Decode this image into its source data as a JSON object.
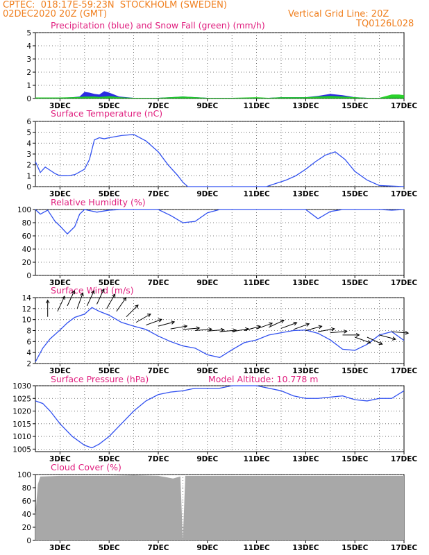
{
  "header": {
    "line1": "CPTEC:  018:17E-59:23N  STOCKHOLM (SWEDEN)",
    "line2": "02DEC2020 20Z (GMT)",
    "grid_note": "Vertical Grid Line: 20Z",
    "code": "TQ0126L028"
  },
  "colors": {
    "precip": "#2020e0",
    "snow": "#20d020",
    "line": "#3050f0",
    "arrow": "#000000",
    "cloud": "#a8a8a8",
    "title": "#e0207f",
    "header": "#f08020"
  },
  "x_ticks": [
    "3DEC",
    "5DEC",
    "7DEC",
    "9DEC",
    "11DEC",
    "13DEC",
    "15DEC",
    "17DEC"
  ],
  "chart_data": [
    {
      "id": "precip",
      "type": "area",
      "title": "Precipitation (blue) and Snow Fall (green) (mm/h)",
      "ylim": [
        0,
        5
      ],
      "yticks": [
        0,
        1,
        2,
        3,
        4,
        5
      ],
      "grid": true,
      "x_range": [
        "02DEC2020 20Z",
        "17DEC2020 20Z"
      ],
      "series": [
        {
          "name": "Precipitation",
          "color": "#2020e0",
          "x": [
            0.0,
            1.0,
            1.5,
            1.8,
            2.0,
            2.2,
            2.4,
            2.6,
            2.8,
            3.0,
            3.2,
            3.4,
            4.0,
            5.0,
            6.0,
            7.0,
            8.0,
            9.0,
            9.5,
            10.0,
            11.0,
            11.5,
            12.0,
            12.5,
            13.0,
            13.5,
            14.0,
            14.5,
            14.8,
            15.0
          ],
          "values": [
            0.05,
            0.05,
            0.1,
            0.15,
            0.5,
            0.45,
            0.35,
            0.3,
            0.55,
            0.45,
            0.3,
            0.15,
            0.05,
            0.05,
            0.15,
            0.05,
            0.05,
            0.05,
            0.05,
            0.1,
            0.1,
            0.2,
            0.35,
            0.25,
            0.1,
            0.05,
            0.05,
            0.1,
            0.1,
            0.1
          ]
        },
        {
          "name": "Snow Fall",
          "color": "#20d020",
          "x": [
            0.0,
            1.0,
            1.5,
            1.8,
            2.0,
            2.2,
            2.4,
            2.6,
            2.8,
            3.0,
            3.2,
            3.4,
            4.0,
            5.0,
            6.0,
            7.0,
            8.0,
            9.0,
            9.5,
            10.0,
            11.0,
            11.5,
            12.0,
            12.5,
            13.0,
            13.5,
            14.0,
            14.5,
            14.8,
            15.0
          ],
          "values": [
            0.08,
            0.08,
            0.1,
            0.12,
            0.15,
            0.15,
            0.15,
            0.12,
            0.15,
            0.18,
            0.15,
            0.1,
            0.05,
            0.05,
            0.15,
            0.05,
            0.05,
            0.1,
            0.05,
            0.1,
            0.1,
            0.15,
            0.2,
            0.15,
            0.1,
            0.05,
            0.05,
            0.3,
            0.3,
            0.25
          ]
        }
      ]
    },
    {
      "id": "temperature",
      "type": "line",
      "title": "Surface Temperature (nC)",
      "ylim": [
        0,
        6
      ],
      "yticks": [
        0,
        1,
        2,
        3,
        4,
        5,
        6
      ],
      "grid": true,
      "x": [
        0.0,
        0.2,
        0.4,
        0.6,
        0.8,
        1.0,
        1.3,
        1.6,
        2.0,
        2.2,
        2.4,
        2.6,
        2.8,
        3.0,
        3.5,
        4.0,
        4.5,
        5.0,
        5.4,
        5.8,
        6.0,
        6.2,
        6.4,
        6.8,
        7.0,
        8.0,
        8.5,
        9.0,
        9.4,
        9.8,
        10.2,
        10.6,
        11.0,
        11.4,
        11.8,
        12.2,
        12.6,
        13.0,
        13.5,
        14.0,
        15.0
      ],
      "values": [
        2.3,
        1.3,
        1.8,
        1.5,
        1.2,
        1.0,
        1.0,
        1.1,
        1.6,
        2.5,
        4.3,
        4.5,
        4.4,
        4.5,
        4.7,
        4.8,
        4.2,
        3.2,
        2.0,
        1.0,
        0.4,
        0.0,
        0.0,
        0.0,
        0.0,
        0.0,
        0.0,
        0.0,
        0.0,
        0.3,
        0.6,
        1.0,
        1.6,
        2.3,
        2.9,
        3.2,
        2.5,
        1.4,
        0.6,
        0.1,
        0.0
      ]
    },
    {
      "id": "humidity",
      "type": "line",
      "title": "Relative Humidity (%)",
      "ylim": [
        0,
        100
      ],
      "yticks": [
        0,
        20,
        40,
        60,
        80,
        100
      ],
      "grid": true,
      "x": [
        0.0,
        0.2,
        0.5,
        0.8,
        1.0,
        1.3,
        1.6,
        1.8,
        2.0,
        2.5,
        3.0,
        3.5,
        4.0,
        4.5,
        5.0,
        5.5,
        6.0,
        6.5,
        7.0,
        7.5,
        8.0,
        8.5,
        9.0,
        10.0,
        11.0,
        11.5,
        12.0,
        12.5,
        13.0,
        13.5,
        14.0,
        14.5,
        15.0
      ],
      "values": [
        100,
        93,
        99,
        82,
        75,
        63,
        74,
        93,
        100,
        96,
        99,
        100,
        100,
        100,
        100,
        91,
        80,
        82,
        95,
        100,
        100,
        100,
        100,
        100,
        100,
        86,
        97,
        100,
        100,
        100,
        100,
        99,
        100
      ]
    },
    {
      "id": "wind",
      "type": "line",
      "title": "Surface Wind (m/s)",
      "ylim": [
        2,
        14
      ],
      "yticks": [
        2,
        4,
        6,
        8,
        10,
        12,
        14
      ],
      "grid": true,
      "x": [
        0.0,
        0.3,
        0.6,
        1.0,
        1.3,
        1.6,
        2.0,
        2.3,
        2.6,
        3.0,
        3.5,
        4.0,
        4.5,
        5.0,
        5.5,
        6.0,
        6.5,
        7.0,
        7.5,
        8.0,
        8.5,
        9.0,
        9.5,
        10.0,
        10.5,
        11.0,
        11.5,
        12.0,
        12.5,
        13.0,
        13.5,
        14.0,
        14.5,
        15.0
      ],
      "values": [
        2.3,
        4.8,
        6.5,
        8.1,
        9.4,
        10.4,
        11.0,
        12.2,
        11.5,
        10.8,
        9.5,
        8.8,
        8.2,
        7.0,
        6.0,
        5.2,
        4.8,
        3.6,
        3.1,
        4.5,
        5.8,
        6.3,
        7.2,
        7.6,
        8.0,
        8.1,
        7.5,
        6.3,
        4.6,
        4.4,
        5.5,
        7.2,
        7.8,
        6.2
      ],
      "arrows": [
        {
          "x": 0.5,
          "speed": 10.5,
          "dir": 180
        },
        {
          "x": 0.9,
          "speed": 11.5,
          "dir": 205
        },
        {
          "x": 1.3,
          "speed": 12.5,
          "dir": 205
        },
        {
          "x": 1.7,
          "speed": 12.0,
          "dir": 200
        },
        {
          "x": 2.1,
          "speed": 12.5,
          "dir": 205
        },
        {
          "x": 2.5,
          "speed": 12.8,
          "dir": 205
        },
        {
          "x": 2.9,
          "speed": 12.0,
          "dir": 210
        },
        {
          "x": 3.3,
          "speed": 11.5,
          "dir": 215
        },
        {
          "x": 3.7,
          "speed": 10.5,
          "dir": 225
        },
        {
          "x": 4.1,
          "speed": 9.5,
          "dir": 240
        },
        {
          "x": 4.5,
          "speed": 9.0,
          "dir": 250
        },
        {
          "x": 5.0,
          "speed": 8.8,
          "dir": 255
        },
        {
          "x": 5.5,
          "speed": 8.3,
          "dir": 260
        },
        {
          "x": 6.0,
          "speed": 8.2,
          "dir": 265
        },
        {
          "x": 6.5,
          "speed": 8.0,
          "dir": 265
        },
        {
          "x": 7.0,
          "speed": 7.9,
          "dir": 265
        },
        {
          "x": 7.5,
          "speed": 7.8,
          "dir": 265
        },
        {
          "x": 8.0,
          "speed": 7.8,
          "dir": 260
        },
        {
          "x": 8.5,
          "speed": 8.0,
          "dir": 255
        },
        {
          "x": 9.0,
          "speed": 8.3,
          "dir": 250
        },
        {
          "x": 9.5,
          "speed": 8.6,
          "dir": 245
        },
        {
          "x": 10.0,
          "speed": 8.4,
          "dir": 250
        },
        {
          "x": 10.5,
          "speed": 8.2,
          "dir": 250
        },
        {
          "x": 11.0,
          "speed": 8.0,
          "dir": 255
        },
        {
          "x": 11.5,
          "speed": 7.8,
          "dir": 260
        },
        {
          "x": 12.0,
          "speed": 7.6,
          "dir": 265
        },
        {
          "x": 12.5,
          "speed": 7.2,
          "dir": 270
        },
        {
          "x": 13.0,
          "speed": 6.8,
          "dir": 290
        },
        {
          "x": 13.5,
          "speed": 6.8,
          "dir": 295
        },
        {
          "x": 14.0,
          "speed": 7.2,
          "dir": 285
        },
        {
          "x": 14.5,
          "speed": 7.8,
          "dir": 275
        }
      ]
    },
    {
      "id": "pressure",
      "type": "line",
      "title": "Surface Pressure (hPa)",
      "annotation": "Model Altitude: 10.778 m",
      "ylim": [
        1004,
        1030
      ],
      "yticks": [
        1005,
        1010,
        1015,
        1020,
        1025,
        1030
      ],
      "grid": true,
      "x": [
        0.0,
        0.3,
        0.6,
        1.0,
        1.5,
        2.0,
        2.3,
        2.6,
        3.0,
        3.5,
        4.0,
        4.5,
        5.0,
        5.5,
        6.0,
        6.5,
        7.0,
        7.5,
        8.0,
        8.5,
        9.0,
        9.5,
        10.0,
        10.5,
        11.0,
        11.5,
        12.0,
        12.5,
        13.0,
        13.5,
        14.0,
        14.5,
        15.0
      ],
      "values": [
        1024,
        1023,
        1020,
        1015,
        1010,
        1006.5,
        1005.5,
        1007,
        1010,
        1015,
        1020,
        1024,
        1026.5,
        1027.5,
        1028,
        1029,
        1029,
        1029,
        1030,
        1030,
        1030,
        1029,
        1028,
        1026,
        1025,
        1025,
        1025.5,
        1026,
        1024.5,
        1024,
        1025,
        1025,
        1028
      ]
    },
    {
      "id": "cloud",
      "type": "area",
      "title": "Cloud Cover (%)",
      "ylim": [
        0,
        100
      ],
      "yticks": [
        0,
        20,
        40,
        60,
        80,
        100
      ],
      "grid": true,
      "x": [
        0.0,
        0.1,
        0.2,
        1.0,
        2.0,
        3.0,
        4.0,
        5.0,
        5.3,
        5.6,
        5.9,
        6.0,
        6.1,
        7.0,
        8.0,
        9.0,
        10.0,
        11.0,
        12.0,
        13.0,
        14.0,
        15.0
      ],
      "values": [
        40,
        85,
        97,
        98,
        98,
        98,
        99,
        98,
        96,
        94,
        97,
        0,
        98,
        98,
        98,
        98,
        98,
        98,
        98,
        98,
        98,
        98
      ]
    }
  ]
}
